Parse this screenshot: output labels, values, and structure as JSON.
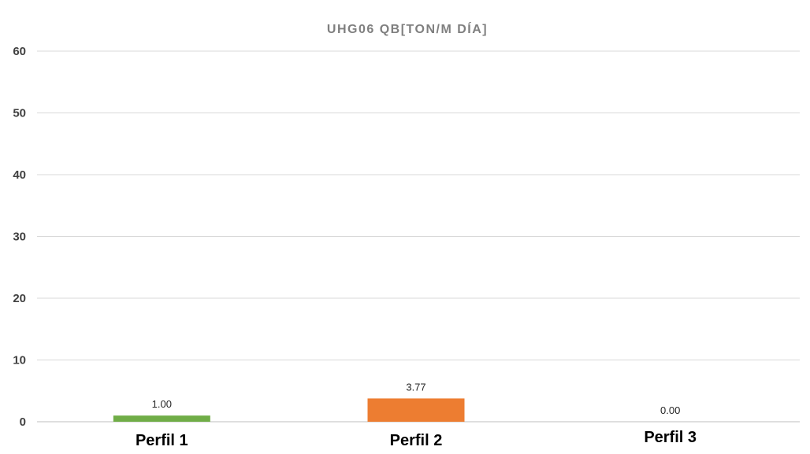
{
  "chart_data": {
    "type": "bar",
    "title": "UHG06 QB[TON/M DÍA]",
    "categories": [
      "Perfil 1",
      "Perfil 2",
      "Perfil 3"
    ],
    "values": [
      1.0,
      3.77,
      0.0
    ],
    "data_labels": [
      "1.00",
      "3.77",
      "0.00"
    ],
    "colors": [
      "#70ad47",
      "#ed7d31",
      "#a5a5a5"
    ],
    "ylim": [
      0,
      60
    ],
    "yticks": [
      0,
      10,
      20,
      30,
      40,
      50,
      60
    ],
    "grid": true,
    "legend": "none"
  }
}
